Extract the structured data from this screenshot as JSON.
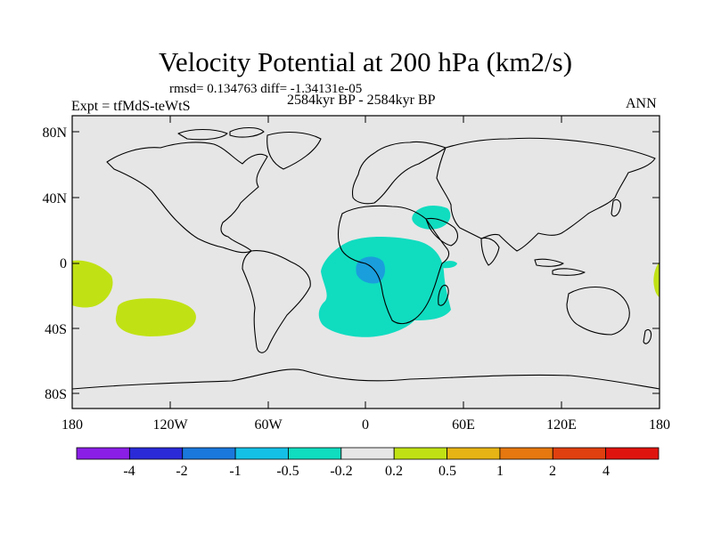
{
  "title": "Velocity Potential at 200 hPa (km2/s)",
  "stats_line": "rmsd= 0.134763 diff= -1.34131e-05",
  "left_label": "Expt = tfMdS-teWtS",
  "center_label": "2584kyr BP - 2584kyr BP",
  "right_label": "ANN",
  "lat_ticks": [
    "80N",
    "40N",
    "0",
    "40S",
    "80S"
  ],
  "lon_ticks": [
    "180",
    "120W",
    "60W",
    "0",
    "60E",
    "120E",
    "180"
  ],
  "colorbar": {
    "labels": [
      "-4",
      "-2",
      "-1",
      "-0.5",
      "-0.2",
      "0.2",
      "0.5",
      "1",
      "2",
      "4"
    ],
    "colors": [
      "#8a1ee6",
      "#2a2ad8",
      "#1a78dc",
      "#14c0e6",
      "#10dcc0",
      "#e6e6e6",
      "#c0e214",
      "#e6b414",
      "#e6780f",
      "#e0400f",
      "#e0140f"
    ]
  },
  "colors": {
    "land_ocean_bg": "#e6e6e6",
    "negative_anomaly": "#10dcc0",
    "strong_negative": "#1a9edc",
    "positive_anomaly": "#c0e214",
    "coast": "#000000"
  }
}
